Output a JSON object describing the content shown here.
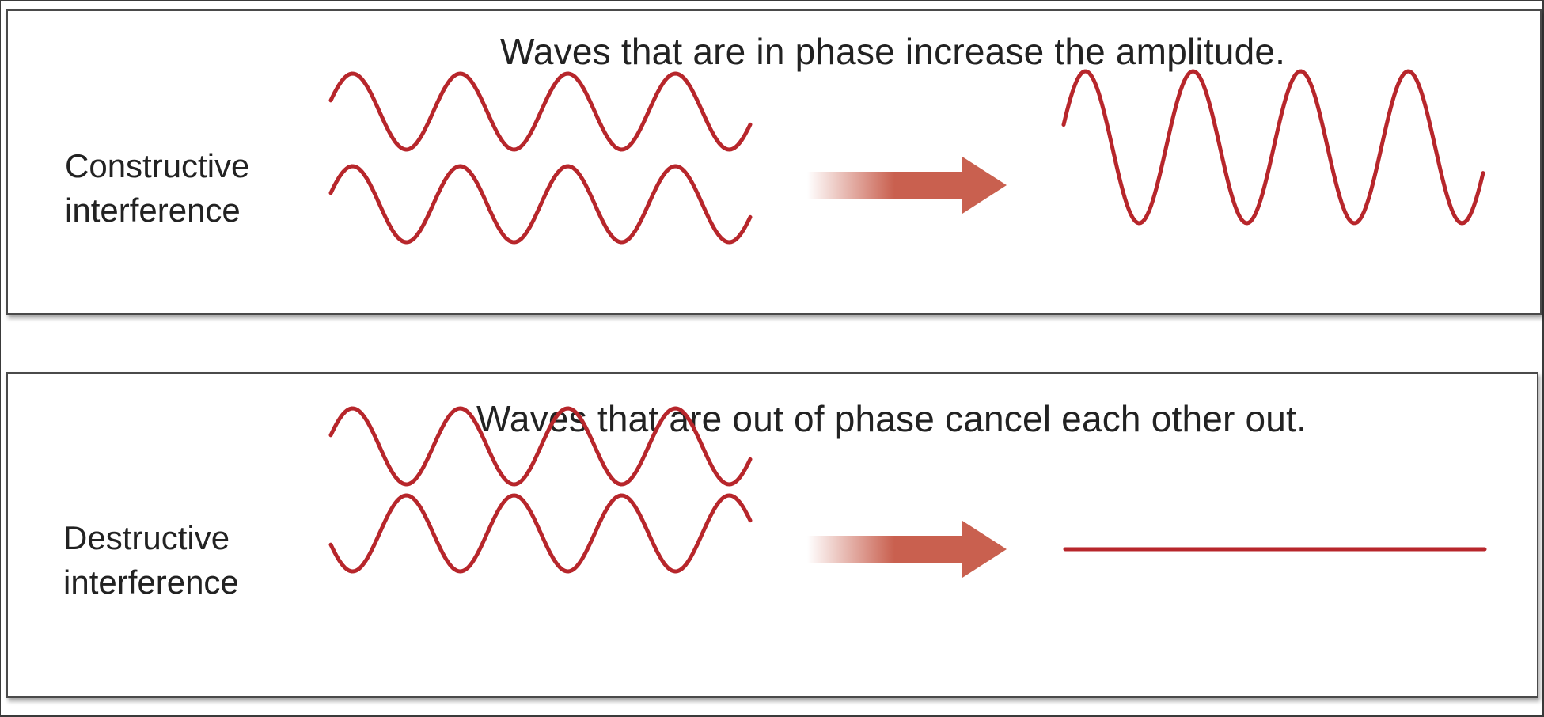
{
  "colors": {
    "wave": "#b7262b",
    "arrow": "#c9604f",
    "text": "#222222",
    "border": "#4a4a4a"
  },
  "panels": [
    {
      "caption": "Waves that are in phase increase the amplitude.",
      "label_line1": "Constructive",
      "label_line2": "interference",
      "result": "wave"
    },
    {
      "caption": "Waves that are out of phase cancel each other out.",
      "label_line1": "Destructive",
      "label_line2": "interference",
      "result": "flat-line"
    }
  ]
}
